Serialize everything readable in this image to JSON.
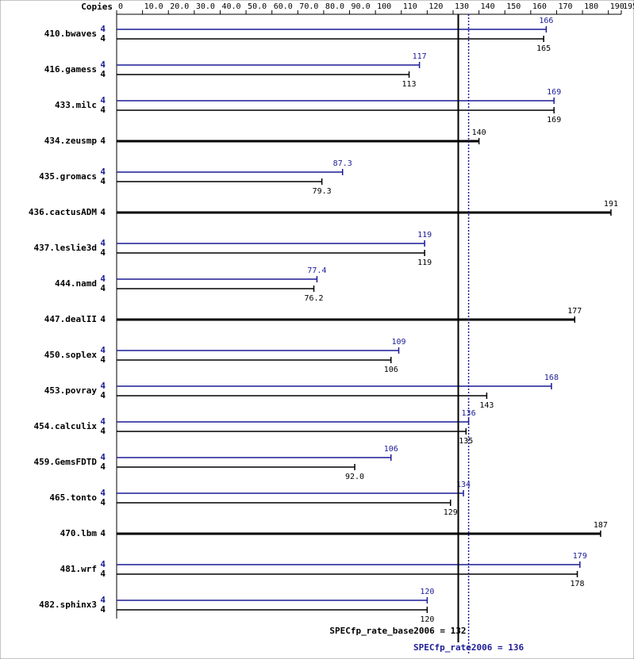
{
  "chart_data": {
    "type": "bar",
    "orientation": "horizontal",
    "axis_title": "Copies",
    "categories": [
      "410.bwaves",
      "416.gamess",
      "433.milc",
      "434.zeusmp",
      "435.gromacs",
      "436.cactusADM",
      "437.leslie3d",
      "444.namd",
      "447.dealII",
      "450.soplex",
      "453.povray",
      "454.calculix",
      "459.GemsFDTD",
      "465.tonto",
      "470.lbm",
      "481.wrf",
      "482.sphinx3"
    ],
    "series": [
      {
        "color": "#1c1c96",
        "copies": [
          4,
          4,
          4,
          null,
          4,
          null,
          4,
          4,
          null,
          4,
          4,
          4,
          4,
          4,
          null,
          4,
          4
        ],
        "values": [
          166,
          117,
          169,
          null,
          87.3,
          null,
          119,
          77.4,
          null,
          109,
          168,
          136,
          106,
          134,
          null,
          179,
          120
        ]
      },
      {
        "color": "#000000",
        "copies": [
          4,
          4,
          4,
          4,
          4,
          4,
          4,
          4,
          4,
          4,
          4,
          4,
          4,
          4,
          4,
          4,
          4
        ],
        "values": [
          165,
          113,
          169,
          140,
          79.3,
          191,
          119,
          76.2,
          177,
          106,
          143,
          135,
          92.0,
          129,
          187,
          178,
          120
        ],
        "value_labels": [
          "165",
          "113",
          "169",
          "140",
          "79.3",
          "191",
          "119",
          "76.2",
          "177",
          "106",
          "143",
          "135",
          "92.0",
          "129",
          "187",
          "178",
          "120"
        ]
      }
    ],
    "xlim": [
      0,
      195
    ],
    "xticks": [
      0,
      {
        "value": 10,
        "label": "10.0"
      },
      {
        "value": 20,
        "label": "20.0"
      },
      {
        "value": 30,
        "label": "30.0"
      },
      {
        "value": 40,
        "label": "40.0"
      },
      {
        "value": 50,
        "label": "50.0"
      },
      {
        "value": 60,
        "label": "60.0"
      },
      {
        "value": 70,
        "label": "70.0"
      },
      {
        "value": 80,
        "label": "80.0"
      },
      {
        "value": 90,
        "label": "90.0"
      },
      100,
      110,
      120,
      130,
      140,
      150,
      160,
      170,
      180,
      190,
      195
    ],
    "reference_lines": [
      {
        "label": "SPECfp_rate_base2006 = 132",
        "value": 132,
        "color": "#000000"
      },
      {
        "label": "SPECfp_rate2006 = 136",
        "value": 136,
        "color": "#1c1c96"
      }
    ]
  }
}
